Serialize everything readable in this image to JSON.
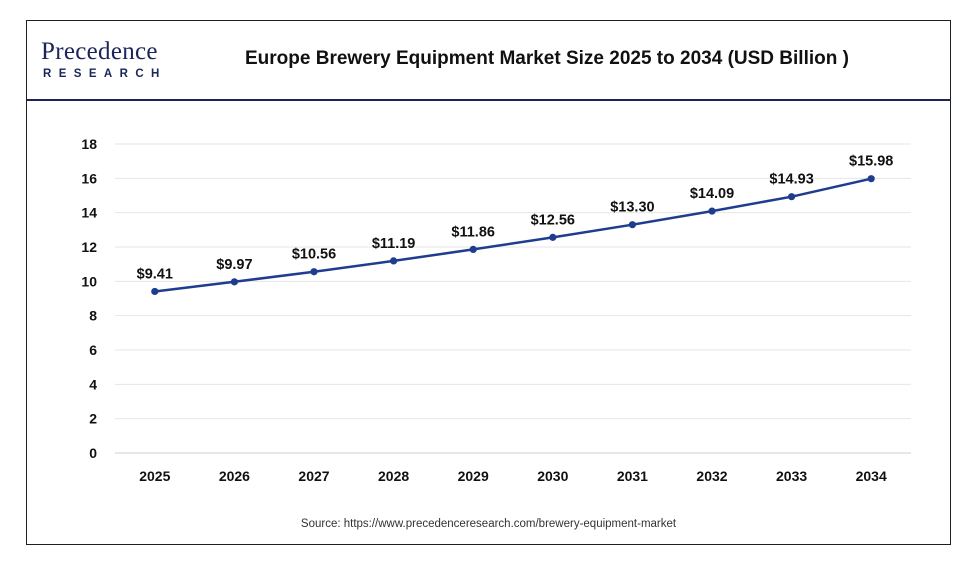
{
  "header": {
    "logo_word": "Precedence",
    "logo_sub": "RESEARCH",
    "title": "Europe Brewery Equipment Market Size 2025 to 2034 (USD Billion )"
  },
  "source": "Source: https://www.precedenceresearch.com/brewery-equipment-market",
  "colors": {
    "line": "#1f3d8f",
    "brand": "#1b2559",
    "grid": "#e6e6e6"
  },
  "chart_data": {
    "type": "line",
    "title": "Europe Brewery Equipment Market Size 2025 to 2034 (USD Billion )",
    "xlabel": "",
    "ylabel": "",
    "categories": [
      "2025",
      "2026",
      "2027",
      "2028",
      "2029",
      "2030",
      "2031",
      "2032",
      "2033",
      "2034"
    ],
    "values": [
      9.41,
      9.97,
      10.56,
      11.19,
      11.86,
      12.56,
      13.3,
      14.09,
      14.93,
      15.98
    ],
    "data_labels": [
      "$9.41",
      "$9.97",
      "$10.56",
      "$11.19",
      "$11.86",
      "$12.56",
      "$13.30",
      "$14.09",
      "$14.93",
      "$15.98"
    ],
    "ylim": [
      0,
      18
    ],
    "yticks": [
      0,
      2,
      4,
      6,
      8,
      10,
      12,
      14,
      16,
      18
    ],
    "grid": true,
    "legend": "none"
  }
}
